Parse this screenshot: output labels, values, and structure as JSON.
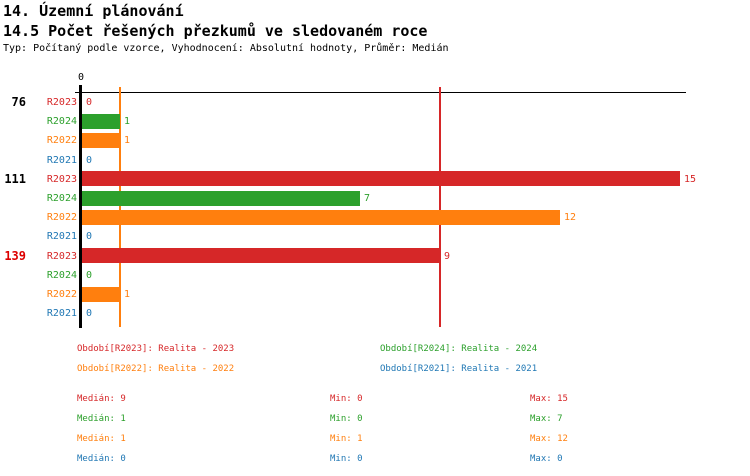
{
  "header": {
    "title1": "14. Územní plánování",
    "title2": "14.5 Počet řešených přezkumů ve sledovaném roce",
    "subtitle": "Typ: Počítaný podle vzorce, Vyhodnocení: Absolutní hodnoty, Průměr: Medián"
  },
  "colors": {
    "R2023": "#d62728",
    "R2024": "#2ca02c",
    "R2022": "#ff7f0e",
    "R2021": "#1f77b4",
    "axis": "#000000",
    "group_label_default": "#000000",
    "group_label_highlight": "#dd0000"
  },
  "chart_data": {
    "type": "bar",
    "orientation": "horizontal",
    "title": "14.5 Počet řešených přezkumů ve sledovaném roce",
    "xlabel": "",
    "ylabel": "",
    "xlim": [
      0,
      15
    ],
    "axis_tick_label": "0",
    "grid": false,
    "legend_position": "bottom",
    "series_order": [
      "R2023",
      "R2024",
      "R2022",
      "R2021"
    ],
    "groups": [
      {
        "label": "76",
        "label_color": "#000000",
        "bars": [
          {
            "series": "R2023",
            "value": 0
          },
          {
            "series": "R2024",
            "value": 1
          },
          {
            "series": "R2022",
            "value": 1
          },
          {
            "series": "R2021",
            "value": 0
          }
        ]
      },
      {
        "label": "111",
        "label_color": "#000000",
        "bars": [
          {
            "series": "R2023",
            "value": 15
          },
          {
            "series": "R2024",
            "value": 7
          },
          {
            "series": "R2022",
            "value": 12
          },
          {
            "series": "R2021",
            "value": 0
          }
        ]
      },
      {
        "label": "139",
        "label_color": "#dd0000",
        "bars": [
          {
            "series": "R2023",
            "value": 9
          },
          {
            "series": "R2024",
            "value": 0
          },
          {
            "series": "R2022",
            "value": 1
          },
          {
            "series": "R2021",
            "value": 0
          }
        ]
      }
    ],
    "median_lines": [
      {
        "series": "R2022",
        "value": 1
      },
      {
        "series": "R2023",
        "value": 9
      }
    ]
  },
  "legend": [
    {
      "series": "R2023",
      "label": "Období[R2023]: Realita - 2023"
    },
    {
      "series": "R2024",
      "label": "Období[R2024]: Realita - 2024"
    },
    {
      "series": "R2022",
      "label": "Období[R2022]: Realita - 2022"
    },
    {
      "series": "R2021",
      "label": "Období[R2021]: Realita - 2021"
    }
  ],
  "stats": [
    {
      "series": "R2023",
      "median": "Medián: 9",
      "min": "Min: 0",
      "max": "Max: 15"
    },
    {
      "series": "R2024",
      "median": "Medián: 1",
      "min": "Min: 0",
      "max": "Max: 7"
    },
    {
      "series": "R2022",
      "median": "Medián: 1",
      "min": "Min: 1",
      "max": "Max: 12"
    },
    {
      "series": "R2021",
      "median": "Medián: 0",
      "min": "Min: 0",
      "max": "Max: 0"
    }
  ]
}
